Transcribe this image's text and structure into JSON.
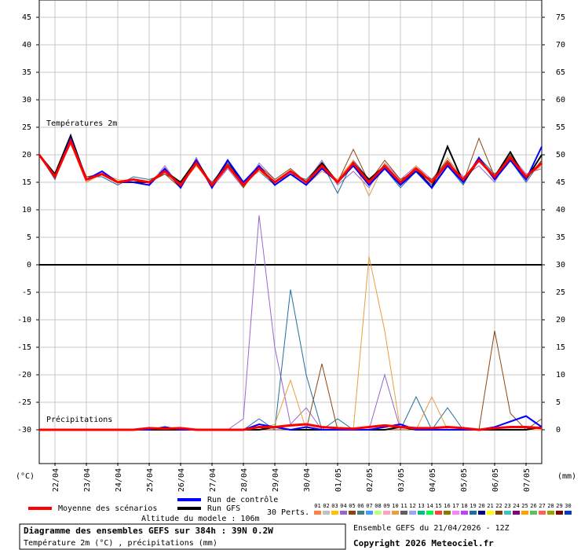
{
  "chart_data": {
    "type": "line",
    "panel_labels": [
      "Températures 2m",
      "Précipitations"
    ],
    "y_unit": "(°C)",
    "y2_unit": "(mm)",
    "altitude": "Altitude du modele : 106m",
    "x": [
      0,
      12,
      24,
      36,
      48,
      60,
      72,
      84,
      96,
      108,
      120,
      132,
      144,
      156,
      168,
      180,
      192,
      204,
      216,
      228,
      240,
      252,
      264,
      276,
      288,
      300,
      312,
      324,
      336,
      348,
      360,
      372,
      384
    ],
    "xlim": [
      0,
      384
    ],
    "xticks": [
      {
        "value": 12,
        "label": "22/04"
      },
      {
        "value": 36,
        "label": "23/04"
      },
      {
        "value": 60,
        "label": "24/04"
      },
      {
        "value": 84,
        "label": "25/04"
      },
      {
        "value": 108,
        "label": "26/04"
      },
      {
        "value": 132,
        "label": "27/04"
      },
      {
        "value": 156,
        "label": "28/04"
      },
      {
        "value": 180,
        "label": "29/04"
      },
      {
        "value": 204,
        "label": "30/04"
      },
      {
        "value": 228,
        "label": "01/05"
      },
      {
        "value": 252,
        "label": "02/05"
      },
      {
        "value": 276,
        "label": "03/05"
      },
      {
        "value": 300,
        "label": "04/05"
      },
      {
        "value": 324,
        "label": "05/05"
      },
      {
        "value": 348,
        "label": "06/05"
      },
      {
        "value": 372,
        "label": "07/05"
      }
    ],
    "ylim": [
      -36,
      48
    ],
    "yticks": [
      45,
      40,
      35,
      30,
      25,
      20,
      15,
      10,
      5,
      0,
      -5,
      -10,
      -15,
      -20,
      -25,
      -30
    ],
    "y2lim": [
      -6,
      78
    ],
    "y2ticks": [
      75,
      70,
      65,
      60,
      55,
      50,
      45,
      40,
      35,
      30,
      25,
      20,
      15,
      10,
      5,
      0
    ],
    "grid": true,
    "series": [
      {
        "name": "Moyenne des scénarios",
        "color": "#ff0000",
        "temperature": [
          20,
          16,
          22.5,
          15.5,
          16.5,
          15,
          15.5,
          15,
          17,
          14.5,
          18.5,
          14.5,
          18,
          14.5,
          17.5,
          15,
          17,
          15,
          18,
          15,
          18.5,
          15,
          18,
          15,
          17.5,
          15,
          18.5,
          15.5,
          19,
          16,
          19.5,
          16,
          18.5
        ],
        "precipitation": [
          0,
          0,
          0,
          0,
          0,
          0,
          0,
          0.3,
          0.2,
          0.3,
          0,
          0,
          0,
          0,
          0.5,
          0.5,
          0.8,
          1,
          0.5,
          0.3,
          0.2,
          0.5,
          0.8,
          0.5,
          0.3,
          0.3,
          0.5,
          0.3,
          0,
          0.3,
          0.5,
          0.5,
          0.3
        ]
      },
      {
        "name": "Run de contrôle",
        "color": "#0000ff",
        "temperature": [
          20,
          16,
          23,
          15.5,
          17,
          15,
          15,
          14.5,
          17.5,
          14,
          19,
          14,
          19,
          15,
          18,
          14.5,
          16.5,
          14.5,
          17.5,
          15,
          18,
          14.5,
          17.5,
          14.5,
          17,
          14,
          18,
          15,
          19.5,
          15.5,
          19,
          15.5,
          21.5
        ],
        "precipitation": [
          0,
          0,
          0,
          0,
          0,
          0,
          0,
          0,
          0.5,
          0,
          0,
          0,
          0,
          0,
          1,
          0.5,
          0,
          0.5,
          0,
          0,
          0,
          0,
          0.5,
          1,
          0,
          0,
          0,
          0,
          0,
          0.5,
          1.5,
          2.5,
          0.5
        ]
      },
      {
        "name": "Run GFS",
        "color": "#000000",
        "temperature": [
          20,
          16.5,
          23.5,
          15.5,
          16.5,
          15,
          15,
          15,
          17,
          15,
          19,
          14.5,
          19,
          14.5,
          17.5,
          15,
          17,
          15,
          18.5,
          15,
          18.5,
          15.5,
          18,
          14.5,
          17.5,
          14,
          21.5,
          15,
          19,
          16,
          20.5,
          15.5,
          20
        ],
        "precipitation": [
          0,
          0,
          0,
          0,
          0,
          0,
          0,
          0,
          0,
          0,
          0,
          0,
          0,
          0,
          0,
          0.5,
          0,
          0,
          0,
          0,
          0,
          0,
          0,
          0.5,
          0,
          0,
          0,
          0,
          0,
          0,
          0,
          0,
          0.5
        ]
      },
      {
        "color": "#9966cc",
        "temperature": [
          20,
          16,
          22,
          15,
          17,
          15,
          15,
          14.5,
          18,
          14,
          19.5,
          14,
          17.5,
          14,
          18.5,
          15.5,
          17.5,
          15,
          19,
          14.5,
          17,
          14,
          18.5,
          15.5,
          18,
          15.5,
          19,
          16,
          18,
          15,
          20,
          16.5,
          17.5
        ],
        "precipitation": [
          0,
          0,
          0,
          0,
          0,
          0,
          0,
          0,
          0,
          0,
          0,
          0,
          0,
          2,
          39,
          15,
          1,
          4,
          0,
          0,
          0,
          0,
          10,
          0,
          0,
          0,
          0,
          0,
          0,
          0,
          0,
          0,
          0
        ]
      },
      {
        "color": "#1f6f9f",
        "temperature": [
          20,
          15.5,
          23,
          16,
          16,
          14.5,
          16,
          15.5,
          16.5,
          15,
          18,
          15,
          18.5,
          15,
          17,
          14.5,
          16.5,
          15.5,
          18.5,
          13,
          19,
          15.5,
          17.5,
          14,
          17,
          14.5,
          18,
          14.5,
          19.5,
          16.5,
          19,
          15,
          19
        ],
        "precipitation": [
          0,
          0,
          0,
          0,
          0,
          0,
          0,
          0,
          0,
          0,
          0,
          0,
          0,
          0,
          2,
          0,
          25.5,
          10,
          0,
          2,
          0,
          0,
          0,
          0,
          6,
          0,
          4,
          0,
          0,
          0,
          0,
          0,
          0
        ]
      },
      {
        "color": "#e6a040",
        "temperature": [
          20,
          16.5,
          22,
          15,
          16.5,
          15.5,
          15,
          15,
          17.5,
          14.5,
          18,
          14.5,
          18,
          15,
          17,
          15,
          16.5,
          14.5,
          17,
          15.5,
          19,
          12.5,
          18.5,
          14.5,
          18,
          15,
          19.5,
          15.5,
          19,
          15.5,
          19.5,
          16,
          18
        ],
        "precipitation": [
          0,
          0,
          0,
          0,
          0,
          0,
          0,
          0,
          0,
          0,
          0,
          0,
          0,
          0,
          0,
          1,
          9,
          0,
          0,
          0,
          0,
          31.5,
          18,
          0,
          0,
          6,
          0,
          0,
          0,
          0,
          0,
          0,
          0
        ]
      },
      {
        "color": "#8b4513",
        "temperature": [
          20,
          16,
          22.5,
          16,
          16.5,
          15,
          15.5,
          15,
          16.5,
          14,
          18.5,
          14.5,
          18.5,
          14,
          18,
          15.5,
          17.5,
          15,
          18,
          15,
          21,
          15,
          19,
          15.5,
          17,
          15.5,
          19,
          15,
          23,
          16,
          20,
          15.5,
          19
        ],
        "precipitation": [
          0,
          0,
          0,
          0,
          0,
          0,
          0,
          0,
          0,
          0,
          0,
          0,
          0,
          0,
          0,
          0,
          0,
          0,
          12,
          0,
          0,
          0,
          0,
          0,
          0,
          0,
          0,
          0,
          0,
          18,
          3,
          0,
          2
        ]
      }
    ],
    "perturbations": {
      "label": "30 Perts.",
      "members": [
        {
          "name": "01",
          "color": "#ff8040"
        },
        {
          "name": "02",
          "color": "#c0c0c0"
        },
        {
          "name": "03",
          "color": "#ffc000"
        },
        {
          "name": "04",
          "color": "#9966cc"
        },
        {
          "name": "05",
          "color": "#8b4513"
        },
        {
          "name": "06",
          "color": "#408080"
        },
        {
          "name": "07",
          "color": "#40a0ff"
        },
        {
          "name": "08",
          "color": "#c0ff80"
        },
        {
          "name": "09",
          "color": "#ffa0c0"
        },
        {
          "name": "10",
          "color": "#e6a040"
        },
        {
          "name": "11",
          "color": "#606060"
        },
        {
          "name": "12",
          "color": "#a0a0ff"
        },
        {
          "name": "13",
          "color": "#00c080"
        },
        {
          "name": "14",
          "color": "#00ff40"
        },
        {
          "name": "15",
          "color": "#ff4040"
        },
        {
          "name": "16",
          "color": "#808000"
        },
        {
          "name": "17",
          "color": "#ff80ff"
        },
        {
          "name": "18",
          "color": "#c040ff"
        },
        {
          "name": "19",
          "color": "#1f6f9f"
        },
        {
          "name": "20",
          "color": "#000080"
        },
        {
          "name": "21",
          "color": "#ffff00"
        },
        {
          "name": "22",
          "color": "#804000"
        },
        {
          "name": "23",
          "color": "#40c0c0"
        },
        {
          "name": "24",
          "color": "#800080"
        },
        {
          "name": "25",
          "color": "#ffa000"
        },
        {
          "name": "26",
          "color": "#60c060"
        },
        {
          "name": "27",
          "color": "#ff6060"
        },
        {
          "name": "28",
          "color": "#a0a000"
        },
        {
          "name": "29",
          "color": "#800000"
        },
        {
          "name": "30",
          "color": "#0040c0"
        }
      ]
    },
    "footer": {
      "title": "Diagramme des ensembles GEFS sur 384h : 39N 0.2W",
      "subtitle": "Température 2m (°C) , précipitations (mm)",
      "run": "Ensemble GEFS du 21/04/2026 - 12Z",
      "copyright": "Copyright 2026 Meteociel.fr"
    }
  }
}
